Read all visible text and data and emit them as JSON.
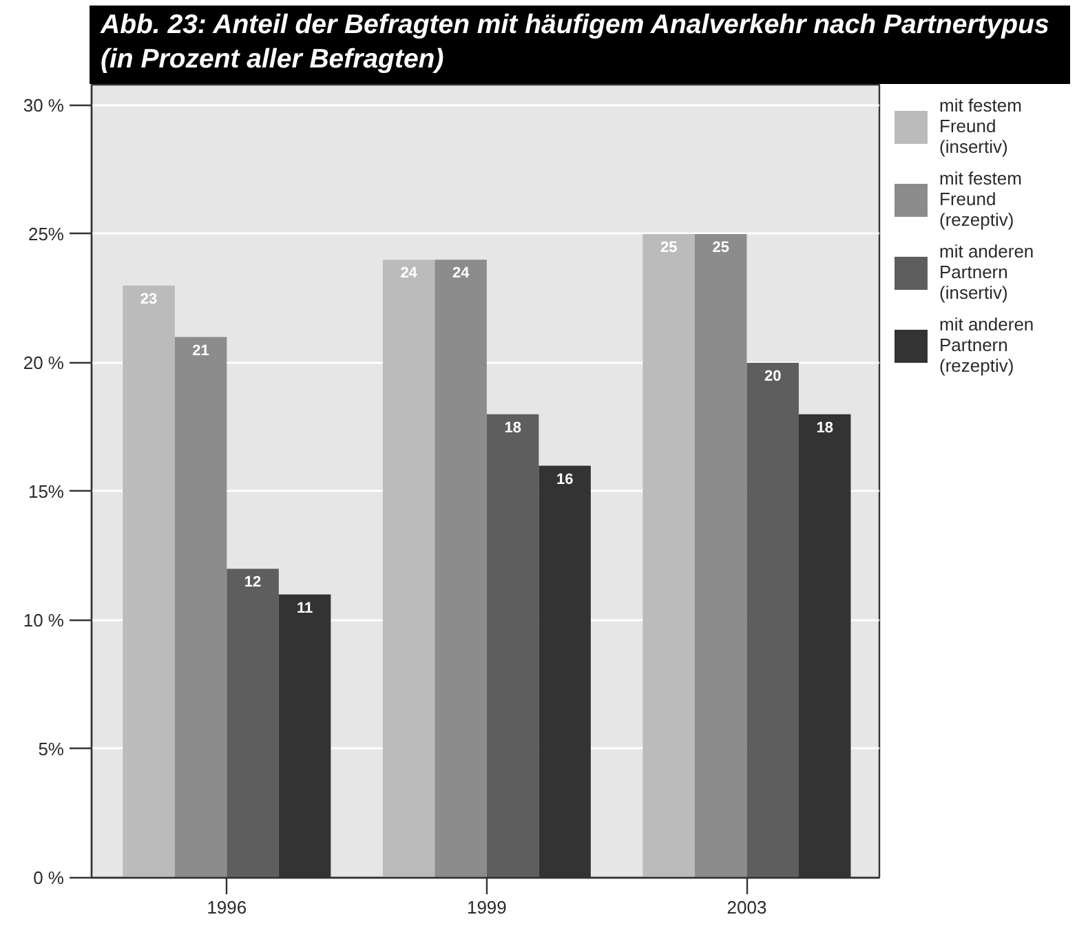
{
  "chart_data": {
    "type": "bar",
    "title": "Abb. 23: Anteil der Befragten mit häufigem Analverkehr nach Partnertypus (in Prozent aller Befragten)",
    "categories": [
      "1996",
      "1999",
      "2003"
    ],
    "series": [
      {
        "name": "mit festem Freund (insertiv)",
        "color": "#bbbbbb",
        "values": [
          23,
          24,
          25
        ]
      },
      {
        "name": "mit festem Freund (rezeptiv)",
        "color": "#8c8c8c",
        "values": [
          21,
          24,
          25
        ]
      },
      {
        "name": "mit anderen Partnern (insertiv)",
        "color": "#5e5e5e",
        "values": [
          12,
          18,
          20
        ]
      },
      {
        "name": "mit anderen Partnern (rezeptiv)",
        "color": "#333333",
        "values": [
          11,
          16,
          18
        ]
      }
    ],
    "ylim": [
      0,
      30.8
    ],
    "yticks": [
      {
        "value": 0,
        "label": "0 %"
      },
      {
        "value": 5,
        "label": "5%"
      },
      {
        "value": 10,
        "label": "10 %"
      },
      {
        "value": 15,
        "label": "15%"
      },
      {
        "value": 20,
        "label": "20 %"
      },
      {
        "value": 25,
        "label": "25%"
      },
      {
        "value": 30,
        "label": "30 %"
      }
    ],
    "grid": "y",
    "legend": "right",
    "data_labels": true
  }
}
